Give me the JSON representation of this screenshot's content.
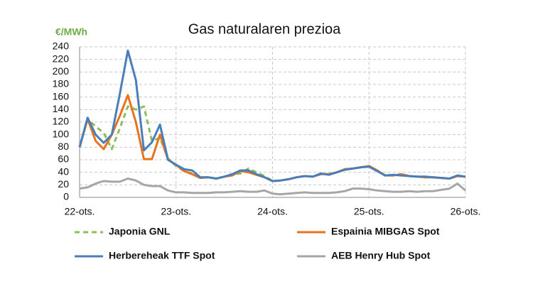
{
  "chart_data": {
    "type": "line",
    "title": "Gas naturalaren prezioa",
    "y_label": "€/MWh",
    "categories": [
      "22-ots.",
      null,
      null,
      null,
      null,
      null,
      null,
      null,
      null,
      null,
      null,
      null,
      "23-ots.",
      null,
      null,
      null,
      null,
      null,
      null,
      null,
      null,
      null,
      null,
      null,
      "24-ots.",
      null,
      null,
      null,
      null,
      null,
      null,
      null,
      null,
      null,
      null,
      null,
      "25-ots.",
      null,
      null,
      null,
      null,
      null,
      null,
      null,
      null,
      null,
      null,
      null,
      "26-ots."
    ],
    "series": [
      {
        "name": "Japonia GNL",
        "color": "#8cbf5a",
        "dashed": true,
        "values": [
          80,
          125,
          113,
          103,
          77,
          110,
          145,
          140,
          145,
          90,
          95,
          62,
          50,
          42,
          38,
          32,
          32,
          30,
          33,
          37,
          38,
          46,
          40,
          34,
          26,
          27,
          29,
          32,
          34,
          33,
          37,
          37,
          40,
          45,
          46,
          48,
          50,
          43,
          35,
          35,
          37,
          34,
          33,
          32,
          32,
          31,
          30,
          34,
          33
        ]
      },
      {
        "name": "Espainia MIBGAS Spot",
        "color": "#e8731d",
        "values": [
          80,
          125,
          90,
          77,
          100,
          130,
          163,
          120,
          61,
          61,
          100,
          60,
          52,
          42,
          37,
          31,
          32,
          30,
          33,
          35,
          42,
          40,
          36,
          32,
          26,
          27,
          29,
          32,
          34,
          33,
          37,
          37,
          40,
          45,
          46,
          48,
          50,
          43,
          35,
          35,
          37,
          34,
          33,
          32,
          32,
          31,
          30,
          34,
          33
        ]
      },
      {
        "name": "Herbereheak TTF Spot",
        "color": "#4a7ebb",
        "values": [
          80,
          127,
          100,
          87,
          100,
          165,
          234,
          187,
          75,
          88,
          116,
          60,
          52,
          45,
          43,
          32,
          32,
          30,
          33,
          37,
          43,
          43,
          37,
          32,
          26,
          27,
          29,
          32,
          34,
          33,
          38,
          36,
          40,
          44,
          46,
          48,
          49,
          42,
          35,
          36,
          35,
          34,
          33,
          33,
          32,
          31,
          30,
          35,
          33
        ]
      },
      {
        "name": "AEB Henry Hub Spot",
        "color": "#a6a6a6",
        "values": [
          14,
          16,
          22,
          26,
          25,
          25,
          30,
          27,
          20,
          18,
          18,
          11,
          8,
          8,
          7,
          7,
          7,
          8,
          8,
          9,
          10,
          9,
          9,
          11,
          6,
          5,
          6,
          7,
          8,
          7,
          7,
          7,
          8,
          10,
          14,
          14,
          13,
          11,
          10,
          9,
          9,
          10,
          9,
          10,
          10,
          12,
          14,
          22,
          11
        ]
      }
    ],
    "ylim": [
      0,
      240
    ],
    "yticks": [
      0,
      20,
      40,
      60,
      80,
      100,
      120,
      140,
      160,
      180,
      200,
      220,
      240
    ],
    "grid": true
  }
}
